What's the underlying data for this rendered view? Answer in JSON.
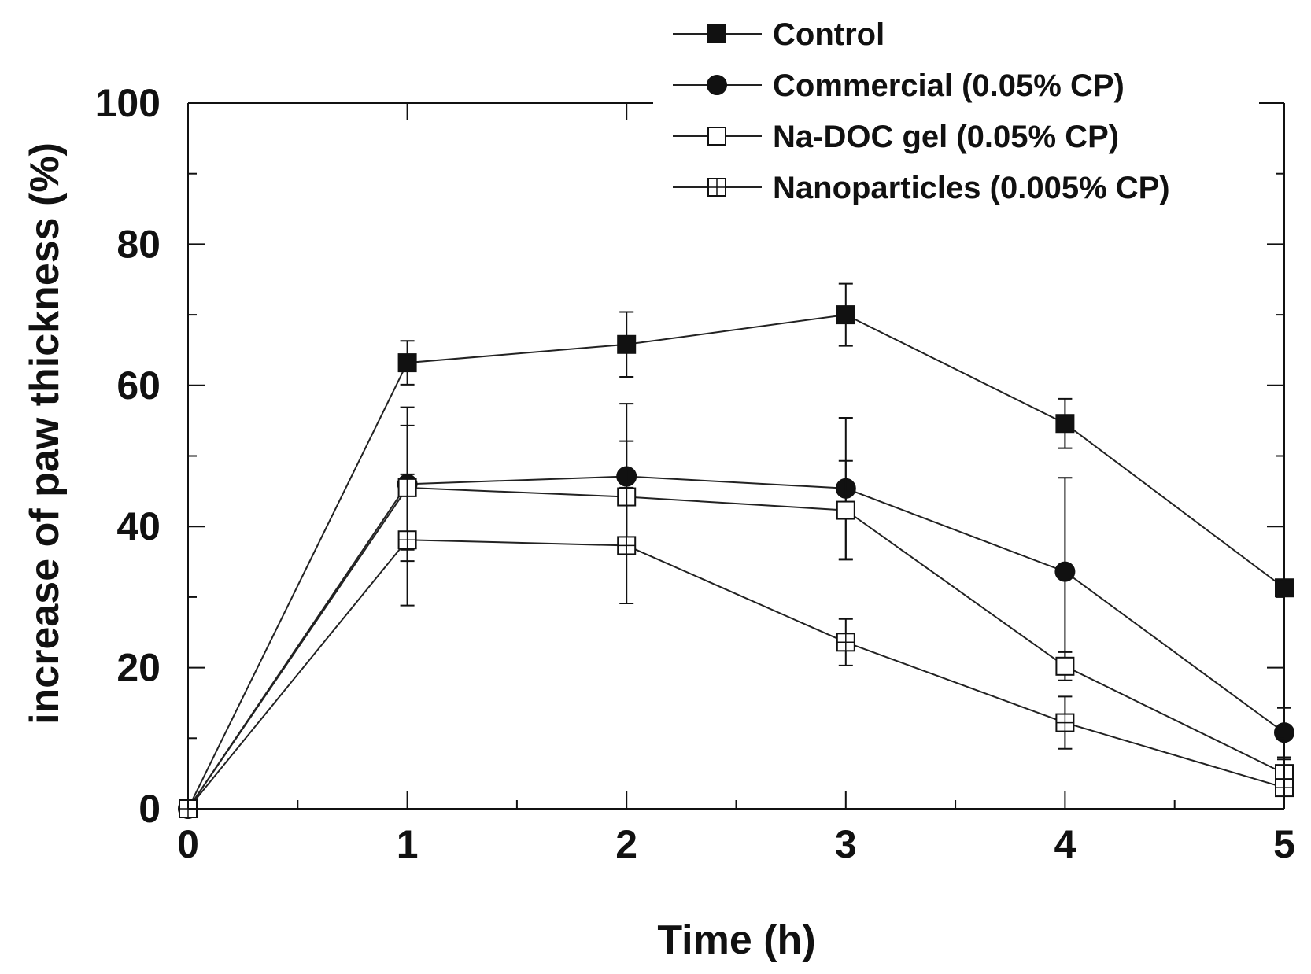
{
  "chart_data": {
    "type": "line",
    "title": "",
    "xlabel": "Time (h)",
    "ylabel": "increase of paw thickness (%)",
    "xlim": [
      0,
      5
    ],
    "ylim": [
      0,
      100
    ],
    "x_ticks": [
      0,
      1,
      2,
      3,
      4,
      5
    ],
    "y_ticks": [
      0,
      20,
      40,
      60,
      80,
      100
    ],
    "grid": false,
    "legend_position": "top-right",
    "x": [
      0,
      1,
      2,
      3,
      4,
      5
    ],
    "series": [
      {
        "name": "Control",
        "marker": "filled-square",
        "values": [
          0,
          63.2,
          65.8,
          70.0,
          54.6,
          31.3
        ],
        "errors": [
          0,
          3.1,
          4.6,
          4.4,
          3.5,
          0
        ]
      },
      {
        "name": "Commercial (0.05% CP)",
        "marker": "filled-circle",
        "values": [
          0,
          46.0,
          47.1,
          45.4,
          33.6,
          10.8
        ],
        "errors": [
          0,
          10.9,
          10.3,
          10.0,
          13.3,
          3.5
        ]
      },
      {
        "name": "Na-DOC gel (0.05% CP)",
        "marker": "open-square",
        "values": [
          0,
          45.5,
          44.2,
          42.3,
          20.2,
          5.0
        ],
        "errors": [
          0,
          8.8,
          7.9,
          7.0,
          2.0,
          2.0
        ]
      },
      {
        "name": "Nanoparticles (0.005% CP)",
        "marker": "crossed-square",
        "values": [
          0,
          38.1,
          37.3,
          23.6,
          12.2,
          3.0
        ],
        "errors": [
          0,
          9.3,
          8.2,
          3.3,
          3.7,
          1.0
        ]
      }
    ]
  }
}
